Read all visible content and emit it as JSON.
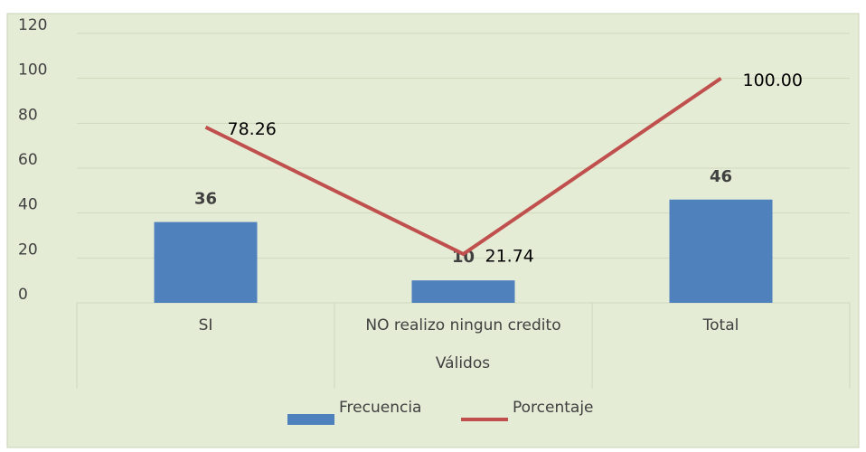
{
  "chart_data": {
    "type": "bar",
    "categories": [
      "SI",
      "NO realizo ningun credito",
      "Total"
    ],
    "xlabel": "Válidos",
    "series": [
      {
        "name": "Frecuencia",
        "type": "bar",
        "color": "#4f81bd",
        "values": [
          36,
          10,
          46
        ]
      },
      {
        "name": "Porcentaje",
        "type": "line",
        "color": "#c0504d",
        "values": [
          78.26,
          21.74,
          100
        ],
        "value_labels": [
          "78.26",
          "21.74",
          "100.00"
        ]
      }
    ],
    "ylim": [
      0,
      120
    ],
    "yticks": [
      0,
      20,
      40,
      60,
      80,
      100,
      120
    ],
    "grid": true,
    "legend": "bottom"
  }
}
